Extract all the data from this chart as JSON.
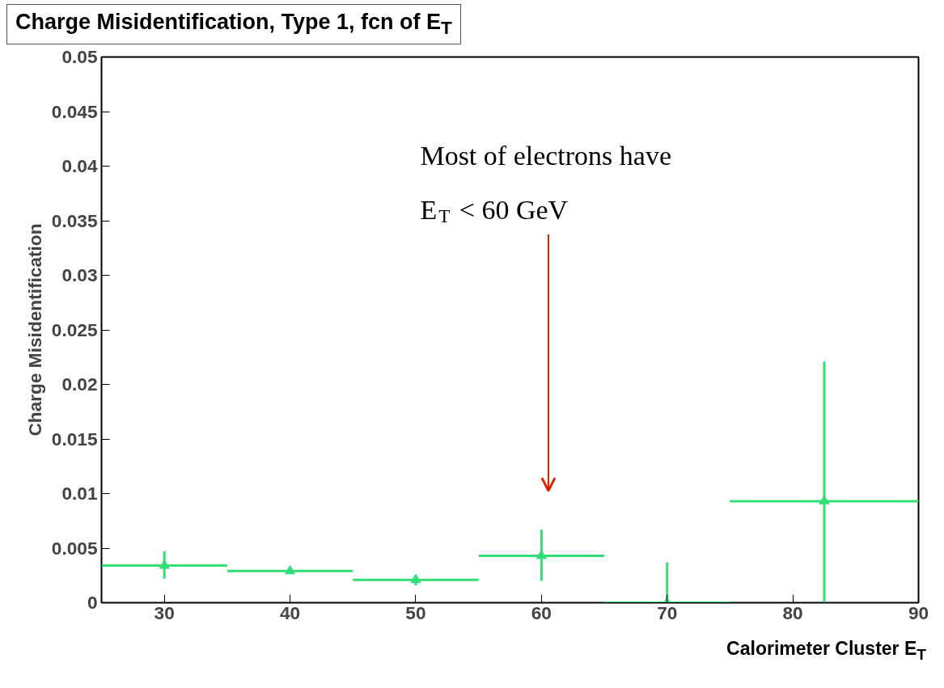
{
  "chart_data": {
    "type": "scatter",
    "title": "Charge Misidentification, Type 1, fcn of E$_{T}$",
    "xlabel": "Calorimeter Cluster E$_{T}$",
    "ylabel": "Charge Misidentification",
    "x": [
      30,
      40,
      50,
      60,
      70,
      82.5
    ],
    "series": [
      {
        "color": "#33dd77",
        "values": [
          0.0034,
          0.0029,
          0.0021,
          0.0043,
          0.0,
          0.0093
        ],
        "errors": [
          [
            0.0022,
            0.0047
          ],
          null,
          [
            0.0016,
            0.0025
          ],
          [
            0.002,
            0.0067
          ],
          [
            0.0,
            0.0037
          ],
          [
            0.0,
            0.0221
          ]
        ],
        "xerrors": [
          [
            25,
            35
          ],
          [
            35,
            45
          ],
          [
            45,
            55
          ],
          [
            55,
            65
          ],
          [
            65,
            75
          ],
          [
            75,
            90
          ]
        ]
      }
    ],
    "marker": "triangle",
    "xlim": [
      25,
      90
    ],
    "ylim": [
      0,
      0.05
    ],
    "xticks": [
      30,
      40,
      50,
      60,
      70,
      80,
      90
    ],
    "yticks": [
      0,
      0.005,
      0.01,
      0.015,
      0.02,
      0.025,
      0.03,
      0.035,
      0.04,
      0.045,
      0.05
    ],
    "annotations": [
      "Most of electrons have\nE$_{T}$ < 60 GeV"
    ],
    "grid": false
  }
}
